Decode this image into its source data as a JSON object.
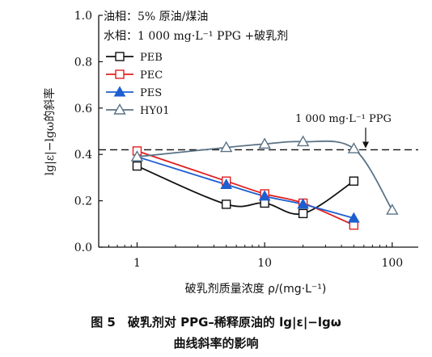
{
  "chart_data": {
    "type": "line",
    "title": "",
    "xlabel": "破乳剂质量浓度 ρ/(mg·L⁻¹)",
    "ylabel": "lg|ε|−lgω的斜率",
    "x_scale": "log",
    "xlim": [
      0.5,
      160
    ],
    "ylim": [
      0.0,
      1.0
    ],
    "x_ticks": [
      1,
      10,
      100
    ],
    "x_tick_labels": [
      "1",
      "10",
      "100"
    ],
    "y_ticks": [
      0.0,
      0.2,
      0.4,
      0.6,
      0.8,
      1.0
    ],
    "y_tick_labels": [
      "0.0",
      "0.2",
      "0.4",
      "0.6",
      "0.8",
      "1.0"
    ],
    "grid": false,
    "legend_position": "top-left",
    "conditions": [
      "油相：5% 原油/煤油",
      "水相：1 000 mg·L⁻¹ PPG +破乳剂"
    ],
    "series": [
      {
        "name": "PEB",
        "color": "#111111",
        "marker": "square-open",
        "x": [
          1,
          5,
          10,
          20,
          50
        ],
        "y": [
          0.35,
          0.185,
          0.19,
          0.145,
          0.285
        ]
      },
      {
        "name": "PEC",
        "color": "#e02020",
        "marker": "square-open",
        "x": [
          1,
          5,
          10,
          20,
          50
        ],
        "y": [
          0.415,
          0.285,
          0.23,
          0.19,
          0.095
        ]
      },
      {
        "name": "PES",
        "color": "#1e5fcf",
        "marker": "triangle-filled",
        "x": [
          1,
          5,
          10,
          20,
          50
        ],
        "y": [
          0.39,
          0.27,
          0.22,
          0.185,
          0.125
        ]
      },
      {
        "name": "HY01",
        "color": "#5a7386",
        "marker": "triangle-open",
        "x": [
          1,
          5,
          10,
          20,
          50,
          100
        ],
        "y": [
          0.39,
          0.43,
          0.445,
          0.455,
          0.425,
          0.16
        ]
      }
    ],
    "reference_line": {
      "y": 0.42,
      "label": "1 000 mg·L⁻¹ PPG"
    },
    "caption_line1": "图 5　破乳剂对 PPG–稀释原油的 lg|ε|−lgω",
    "caption_line2": "曲线斜率的影响"
  }
}
